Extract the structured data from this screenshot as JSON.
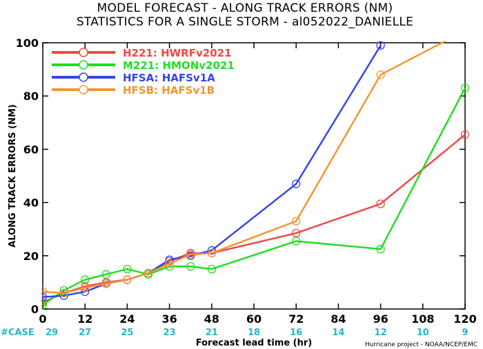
{
  "chart_data": {
    "type": "line",
    "title": "MODEL FORECAST - ALONG TRACK ERRORS (NM)",
    "subtitle": "STATISTICS FOR A SINGLE STORM - al052022_DANIELLE",
    "xlabel": "Forecast lead time (hr)",
    "ylabel": "ALONG TRACK ERRORS (NM)",
    "xlim": [
      0,
      120
    ],
    "ylim": [
      0,
      100
    ],
    "xticks": [
      0,
      12,
      24,
      36,
      48,
      60,
      72,
      84,
      96,
      108,
      120
    ],
    "yticks": [
      0,
      20,
      40,
      60,
      80,
      100
    ],
    "grid": false,
    "legend_position": "top-left",
    "series": [
      {
        "name": "H221: HWRFv2021",
        "color": "#f04848",
        "points": [
          [
            0,
            2.5
          ],
          [
            6,
            6
          ],
          [
            12,
            8.5
          ],
          [
            18,
            10
          ],
          [
            24,
            11
          ],
          [
            30,
            13.5
          ],
          [
            36,
            18
          ],
          [
            42,
            21
          ],
          [
            48,
            21
          ],
          [
            72,
            28.5
          ],
          [
            96,
            39.5
          ],
          [
            120,
            65.5
          ]
        ]
      },
      {
        "name": "M221: HMONv2021",
        "color": "#22dd22",
        "points": [
          [
            0,
            1.5
          ],
          [
            6,
            7
          ],
          [
            12,
            11
          ],
          [
            18,
            13
          ],
          [
            24,
            15
          ],
          [
            30,
            13
          ],
          [
            36,
            16
          ],
          [
            42,
            16
          ],
          [
            48,
            15
          ],
          [
            72,
            25.5
          ],
          [
            96,
            22.5
          ],
          [
            120,
            83
          ]
        ]
      },
      {
        "name": "HFSA: HAFSv1A",
        "color": "#3344ee",
        "points": [
          [
            0,
            4.5
          ],
          [
            6,
            5
          ],
          [
            12,
            6.5
          ],
          [
            18,
            9.5
          ],
          [
            24,
            11
          ],
          [
            30,
            13.5
          ],
          [
            36,
            18.5
          ],
          [
            42,
            20
          ],
          [
            48,
            22
          ],
          [
            72,
            47
          ],
          [
            96,
            99
          ]
        ]
      },
      {
        "name": "HFSB: HAFSv1B",
        "color": "#f59430",
        "points": [
          [
            0,
            6.5
          ],
          [
            6,
            6
          ],
          [
            12,
            8
          ],
          [
            18,
            9.5
          ],
          [
            24,
            11
          ],
          [
            30,
            13.5
          ],
          [
            36,
            17
          ],
          [
            42,
            20.5
          ],
          [
            48,
            21
          ],
          [
            72,
            33
          ],
          [
            96,
            88
          ],
          [
            120,
            104.5
          ]
        ]
      }
    ],
    "case_label": "#CASE",
    "case_color": "#22b8c8",
    "cases": [
      {
        "x": 0,
        "n": "29"
      },
      {
        "x": 12,
        "n": "27"
      },
      {
        "x": 24,
        "n": "25"
      },
      {
        "x": 36,
        "n": "23"
      },
      {
        "x": 48,
        "n": "21"
      },
      {
        "x": 60,
        "n": "18"
      },
      {
        "x": 72,
        "n": "16"
      },
      {
        "x": 84,
        "n": "14"
      },
      {
        "x": 96,
        "n": "12"
      },
      {
        "x": 108,
        "n": "10"
      },
      {
        "x": 120,
        "n": "9"
      }
    ]
  },
  "credit": "Hurricane project - NOAA/NCEP/EMC"
}
